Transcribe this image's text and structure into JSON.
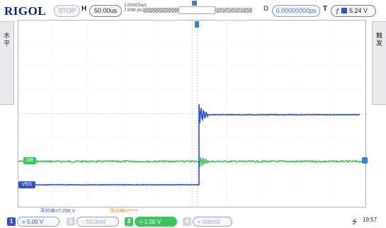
{
  "header": {
    "brand": "RIGOL",
    "run_state": "STOP",
    "h_label": "H",
    "timebase": "50.00us",
    "sample_rate": "2.000GSa/s",
    "memory_depth": "7.00M pts",
    "d_label": "D",
    "delay": "0.00000000ps",
    "t_label": "T",
    "trigger_edge_symbol": "ƒ",
    "trigger_level": "5.24 V"
  },
  "side_tabs": {
    "left": [
      "水",
      "平"
    ],
    "right": [
      "触",
      "发"
    ]
  },
  "markers": {
    "green_label": "DB",
    "blue_label": "VBS"
  },
  "measurements": {
    "m1": "平均值=7.256  V",
    "m2": "平均值=*****"
  },
  "channels": [
    {
      "num": "1",
      "scale": "= 5.00 V",
      "color": "#2f52d1",
      "active": true
    },
    {
      "num": "2",
      "scale": "~ 50.0mV",
      "color": "#9aa3b5",
      "active": false
    },
    {
      "num": "3",
      "scale": "= 1.00 V",
      "color": "#3fc65a",
      "active": true
    },
    {
      "num": "4",
      "scale": "= 500mV",
      "color": "#9aa3b5",
      "active": false
    }
  ],
  "status": {
    "usb_icon": "usb-icon",
    "time": "19:57"
  },
  "colors": {
    "ch1_blue": "#2f52d1",
    "ch3_green": "#3fc65a",
    "accent_blue": "#3a7be0"
  }
}
